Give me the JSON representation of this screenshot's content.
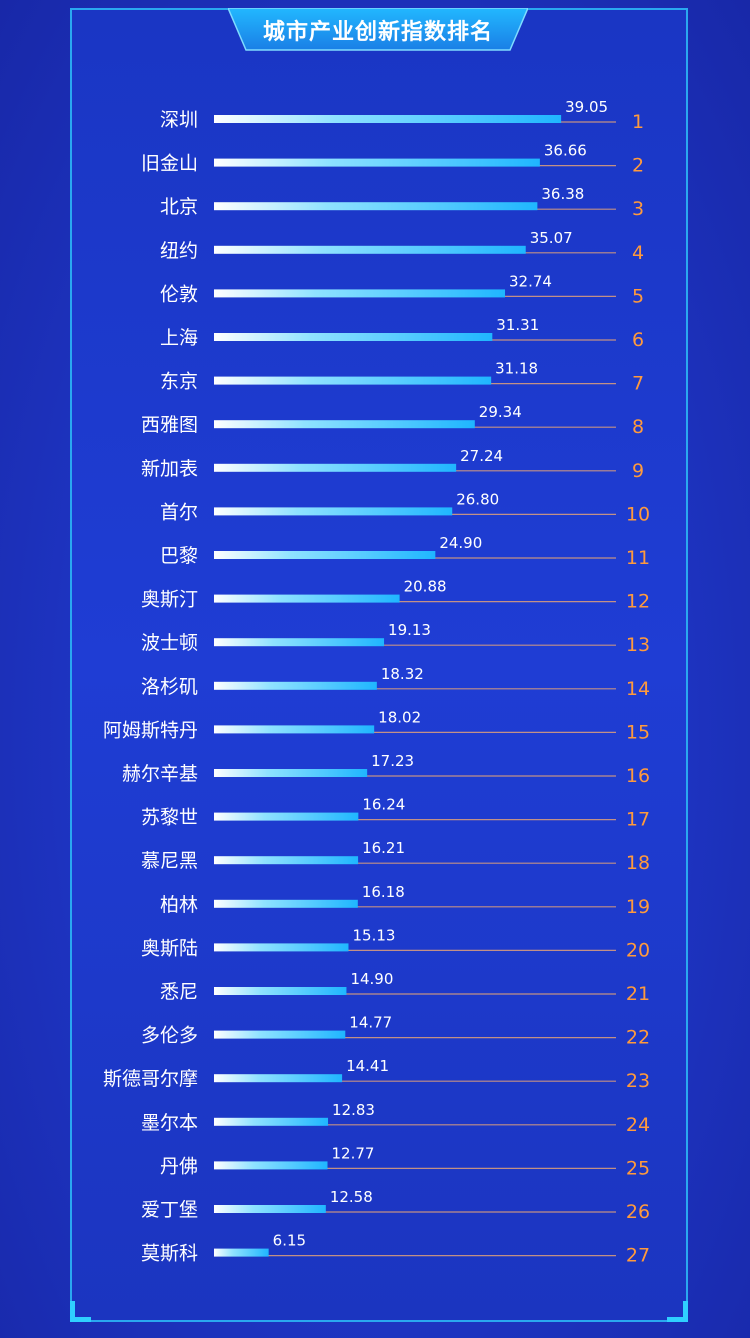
{
  "title": "城市产业创新指数排名",
  "colors": {
    "background": "#1f37c8",
    "frame": "#2aa8f0",
    "bar_start": "#ffffff",
    "bar_end": "#1fb6ff",
    "baseline": "#e0a07a",
    "rank": "#ff9a3c",
    "text": "#ffffff"
  },
  "chart_data": {
    "type": "bar",
    "orientation": "horizontal",
    "title": "城市产业创新指数排名",
    "categories": [
      "深圳",
      "旧金山",
      "北京",
      "纽约",
      "伦敦",
      "上海",
      "东京",
      "西雅图",
      "新加表",
      "首尔",
      "巴黎",
      "奥斯汀",
      "波士顿",
      "洛杉矶",
      "阿姆斯特丹",
      "赫尔辛基",
      "苏黎世",
      "慕尼黑",
      "柏林",
      "奥斯陆",
      "悉尼",
      "多伦多",
      "斯德哥尔摩",
      "墨尔本",
      "丹佛",
      "爱丁堡",
      "莫斯科"
    ],
    "values": [
      39.05,
      36.66,
      36.38,
      35.07,
      32.74,
      31.31,
      31.18,
      29.34,
      27.24,
      26.8,
      24.9,
      20.88,
      19.13,
      18.32,
      18.02,
      17.23,
      16.24,
      16.21,
      16.18,
      15.13,
      14.9,
      14.77,
      14.41,
      12.83,
      12.77,
      12.58,
      6.15
    ],
    "value_labels": [
      "39.05",
      "36.66",
      "36.38",
      "35.07",
      "32.74",
      "31.31",
      "31.18",
      "29.34",
      "27.24",
      "26.80",
      "24.90",
      "20.88",
      "19.13",
      "18.32",
      "18.02",
      "17.23",
      "16.24",
      "16.21",
      "16.18",
      "15.13",
      "14.90",
      "14.77",
      "14.41",
      "12.83",
      "12.77",
      "12.58",
      "6.15"
    ],
    "ranks": [
      "1",
      "2",
      "3",
      "4",
      "5",
      "6",
      "7",
      "8",
      "9",
      "10",
      "11",
      "12",
      "13",
      "14",
      "15",
      "16",
      "17",
      "18",
      "19",
      "20",
      "21",
      "22",
      "23",
      "24",
      "25",
      "26",
      "27"
    ],
    "xlim": [
      0,
      45
    ],
    "grid": false,
    "legend": "none"
  }
}
